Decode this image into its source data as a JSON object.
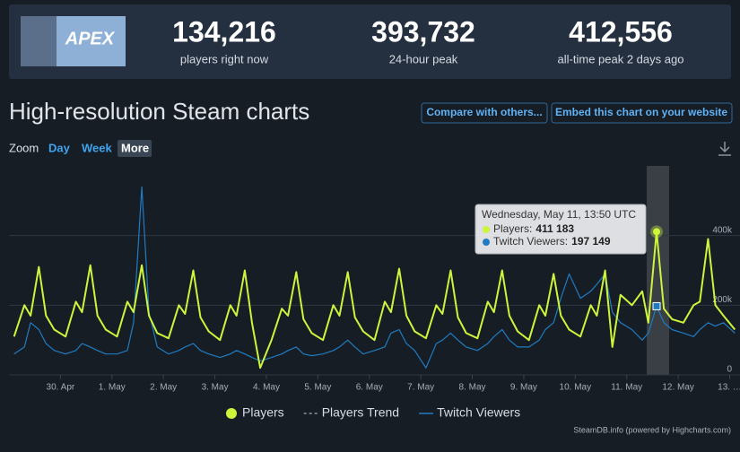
{
  "header": {
    "logo_text": "APEX",
    "stats": [
      {
        "value": "134,216",
        "label": "players right now"
      },
      {
        "value": "393,732",
        "label": "24-hour peak"
      },
      {
        "value": "412,556",
        "label": "all-time peak 2 days ago"
      }
    ]
  },
  "title": "High-resolution Steam charts",
  "buttons": [
    "Compare with others...",
    "Embed this chart on your website"
  ],
  "zoom": {
    "label": "Zoom",
    "options": [
      "Day",
      "Week",
      "More"
    ]
  },
  "credit": "SteamDB.info (powered by Highcharts.com)",
  "chart_data": {
    "type": "line",
    "x": [
      -0.9,
      -0.7,
      -0.58,
      -0.42,
      -0.28,
      -0.12,
      0.1,
      0.3,
      0.42,
      0.58,
      0.72,
      0.88,
      1.1,
      1.3,
      1.42,
      1.58,
      1.72,
      1.88,
      2.1,
      2.3,
      2.42,
      2.58,
      2.72,
      2.88,
      3.1,
      3.3,
      3.42,
      3.58,
      3.72,
      3.88,
      4.1,
      4.3,
      4.42,
      4.58,
      4.72,
      4.88,
      5.1,
      5.3,
      5.42,
      5.58,
      5.72,
      5.88,
      6.1,
      6.3,
      6.42,
      6.58,
      6.72,
      6.88,
      7.1,
      7.3,
      7.42,
      7.58,
      7.72,
      7.88,
      8.1,
      8.3,
      8.42,
      8.58,
      8.72,
      8.88,
      9.1,
      9.3,
      9.42,
      9.58,
      9.72,
      9.88,
      10.1,
      10.3,
      10.42,
      10.58,
      10.72,
      10.88,
      11.1,
      11.3,
      11.42,
      11.58,
      11.72,
      11.88,
      12.1,
      12.3,
      12.42,
      12.58,
      12.72,
      12.88,
      13.1
    ],
    "series": [
      {
        "name": "Players",
        "color": "#cdf53b",
        "values": [
          110000,
          200000,
          170000,
          310000,
          170000,
          130000,
          110000,
          210000,
          180000,
          315000,
          170000,
          130000,
          110000,
          210000,
          180000,
          315000,
          170000,
          120000,
          105000,
          200000,
          175000,
          300000,
          165000,
          125000,
          100000,
          200000,
          170000,
          300000,
          150000,
          20000,
          100000,
          190000,
          170000,
          295000,
          160000,
          120000,
          100000,
          200000,
          170000,
          295000,
          165000,
          125000,
          100000,
          210000,
          180000,
          305000,
          170000,
          125000,
          105000,
          200000,
          175000,
          300000,
          165000,
          120000,
          105000,
          210000,
          180000,
          300000,
          170000,
          125000,
          100000,
          200000,
          170000,
          290000,
          170000,
          130000,
          110000,
          200000,
          170000,
          300000,
          80000,
          230000,
          200000,
          240000,
          150000,
          411183,
          190000,
          160000,
          150000,
          200000,
          210000,
          390000,
          200000,
          170000,
          130000
        ]
      },
      {
        "name": "Twitch Viewers",
        "color": "#1f7cc0",
        "values": [
          60000,
          80000,
          150000,
          130000,
          90000,
          70000,
          60000,
          70000,
          90000,
          80000,
          70000,
          60000,
          60000,
          70000,
          150000,
          540000,
          180000,
          80000,
          60000,
          70000,
          80000,
          90000,
          70000,
          60000,
          50000,
          60000,
          70000,
          60000,
          50000,
          40000,
          50000,
          60000,
          70000,
          80000,
          60000,
          55000,
          60000,
          70000,
          80000,
          100000,
          80000,
          60000,
          70000,
          80000,
          120000,
          130000,
          90000,
          70000,
          20000,
          90000,
          100000,
          120000,
          100000,
          80000,
          70000,
          90000,
          110000,
          130000,
          100000,
          80000,
          80000,
          100000,
          130000,
          150000,
          220000,
          290000,
          220000,
          240000,
          260000,
          290000,
          180000,
          150000,
          130000,
          100000,
          120000,
          197149,
          150000,
          130000,
          120000,
          110000,
          130000,
          150000,
          140000,
          150000,
          120000
        ]
      }
    ],
    "extra_legend": [
      {
        "name": "Players Trend",
        "color": "#8a96a3"
      }
    ],
    "xlim": [
      -1,
      13.2
    ],
    "xticks": [
      {
        "value": 0,
        "label": "30. Apr"
      },
      {
        "value": 1,
        "label": "1. May"
      },
      {
        "value": 2,
        "label": "2. May"
      },
      {
        "value": 3,
        "label": "3. May"
      },
      {
        "value": 4,
        "label": "4. May"
      },
      {
        "value": 5,
        "label": "5. May"
      },
      {
        "value": 6,
        "label": "6. May"
      },
      {
        "value": 7,
        "label": "7. May"
      },
      {
        "value": 8,
        "label": "8. May"
      },
      {
        "value": 9,
        "label": "9. May"
      },
      {
        "value": 10,
        "label": "10. May"
      },
      {
        "value": 11,
        "label": "11. May"
      },
      {
        "value": 12,
        "label": "12. May"
      },
      {
        "value": 13,
        "label": "13. …"
      }
    ],
    "ylim": [
      0,
      600000
    ],
    "yticks": [
      0,
      {
        "value": 200000,
        "label": "200k"
      },
      {
        "value": 400000,
        "label": "400k"
      }
    ],
    "grid": true,
    "highlight_index": 75,
    "tooltip": {
      "title": "Wednesday, May 11, 13:50 UTC",
      "items": [
        {
          "label": "Players:",
          "value": "411 183"
        },
        {
          "label": "Twitch Viewers:",
          "value": "197 149"
        }
      ]
    }
  }
}
